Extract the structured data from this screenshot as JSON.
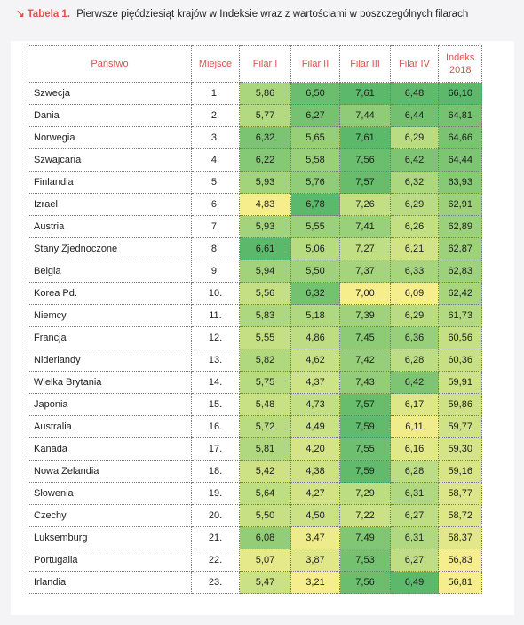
{
  "caption": {
    "label": "Tabela 1.",
    "title": "Pierwsze pięćdziesiąt krajów w Indeksie wraz z wartościami w poszczególnych filarach"
  },
  "colors": {
    "accent": "#e2514c",
    "scale_low": "#f6ee8c",
    "scale_mid": "#b9dc82",
    "scale_high": "#5cb86a"
  },
  "headers": [
    "Państwo",
    "Miejsce",
    "Filar I",
    "Filar II",
    "Filar III",
    "Filar IV",
    "Indeks 2018"
  ],
  "rows": [
    {
      "country": "Szwecja",
      "rank": "1.",
      "f1": "5,86",
      "f2": "6,50",
      "f3": "7,61",
      "f4": "6,48",
      "idx": "66,10"
    },
    {
      "country": "Dania",
      "rank": "2.",
      "f1": "5,77",
      "f2": "6,27",
      "f3": "7,44",
      "f4": "6,44",
      "idx": "64,81"
    },
    {
      "country": "Norwegia",
      "rank": "3.",
      "f1": "6,32",
      "f2": "5,65",
      "f3": "7,61",
      "f4": "6,29",
      "idx": "64,66"
    },
    {
      "country": "Szwajcaria",
      "rank": "4.",
      "f1": "6,22",
      "f2": "5,58",
      "f3": "7,56",
      "f4": "6,42",
      "idx": "64,44"
    },
    {
      "country": "Finlandia",
      "rank": "5.",
      "f1": "5,93",
      "f2": "5,76",
      "f3": "7,57",
      "f4": "6,32",
      "idx": "63,93"
    },
    {
      "country": "Izrael",
      "rank": "6.",
      "f1": "4,83",
      "f2": "6,78",
      "f3": "7,26",
      "f4": "6,29",
      "idx": "62,91"
    },
    {
      "country": "Austria",
      "rank": "7.",
      "f1": "5,93",
      "f2": "5,55",
      "f3": "7,41",
      "f4": "6,26",
      "idx": "62,89"
    },
    {
      "country": "Stany Zjednoczone",
      "rank": "8.",
      "f1": "6,61",
      "f2": "5,06",
      "f3": "7,27",
      "f4": "6,21",
      "idx": "62,87"
    },
    {
      "country": "Belgia",
      "rank": "9.",
      "f1": "5,94",
      "f2": "5,50",
      "f3": "7,37",
      "f4": "6,33",
      "idx": "62,83"
    },
    {
      "country": "Korea Pd.",
      "rank": "10.",
      "f1": "5,56",
      "f2": "6,32",
      "f3": "7,00",
      "f4": "6,09",
      "idx": "62,42"
    },
    {
      "country": "Niemcy",
      "rank": "11.",
      "f1": "5,83",
      "f2": "5,18",
      "f3": "7,39",
      "f4": "6,29",
      "idx": "61,73"
    },
    {
      "country": "Francja",
      "rank": "12.",
      "f1": "5,55",
      "f2": "4,86",
      "f3": "7,45",
      "f4": "6,36",
      "idx": "60,56"
    },
    {
      "country": "Niderlandy",
      "rank": "13.",
      "f1": "5,82",
      "f2": "4,62",
      "f3": "7,42",
      "f4": "6,28",
      "idx": "60,36"
    },
    {
      "country": "Wielka Brytania",
      "rank": "14.",
      "f1": "5,75",
      "f2": "4,37",
      "f3": "7,43",
      "f4": "6,42",
      "idx": "59,91"
    },
    {
      "country": "Japonia",
      "rank": "15.",
      "f1": "5,48",
      "f2": "4,73",
      "f3": "7,57",
      "f4": "6,17",
      "idx": "59,86"
    },
    {
      "country": "Australia",
      "rank": "16.",
      "f1": "5,72",
      "f2": "4,49",
      "f3": "7,59",
      "f4": "6,11",
      "idx": "59,77"
    },
    {
      "country": "Kanada",
      "rank": "17.",
      "f1": "5,81",
      "f2": "4,20",
      "f3": "7,55",
      "f4": "6,16",
      "idx": "59,30"
    },
    {
      "country": "Nowa Zelandia",
      "rank": "18.",
      "f1": "5,42",
      "f2": "4,38",
      "f3": "7,59",
      "f4": "6,28",
      "idx": "59,16"
    },
    {
      "country": "Słowenia",
      "rank": "19.",
      "f1": "5,64",
      "f2": "4,27",
      "f3": "7,29",
      "f4": "6,31",
      "idx": "58,77"
    },
    {
      "country": "Czechy",
      "rank": "20.",
      "f1": "5,50",
      "f2": "4,50",
      "f3": "7,22",
      "f4": "6,27",
      "idx": "58,72"
    },
    {
      "country": "Luksemburg",
      "rank": "21.",
      "f1": "6,08",
      "f2": "3,47",
      "f3": "7,49",
      "f4": "6,31",
      "idx": "58,37"
    },
    {
      "country": "Portugalia",
      "rank": "22.",
      "f1": "5,07",
      "f2": "3,87",
      "f3": "7,53",
      "f4": "6,27",
      "idx": "56,83"
    },
    {
      "country": "Irlandia",
      "rank": "23.",
      "f1": "5,47",
      "f2": "3,21",
      "f3": "7,56",
      "f4": "6,49",
      "idx": "56,81"
    }
  ]
}
